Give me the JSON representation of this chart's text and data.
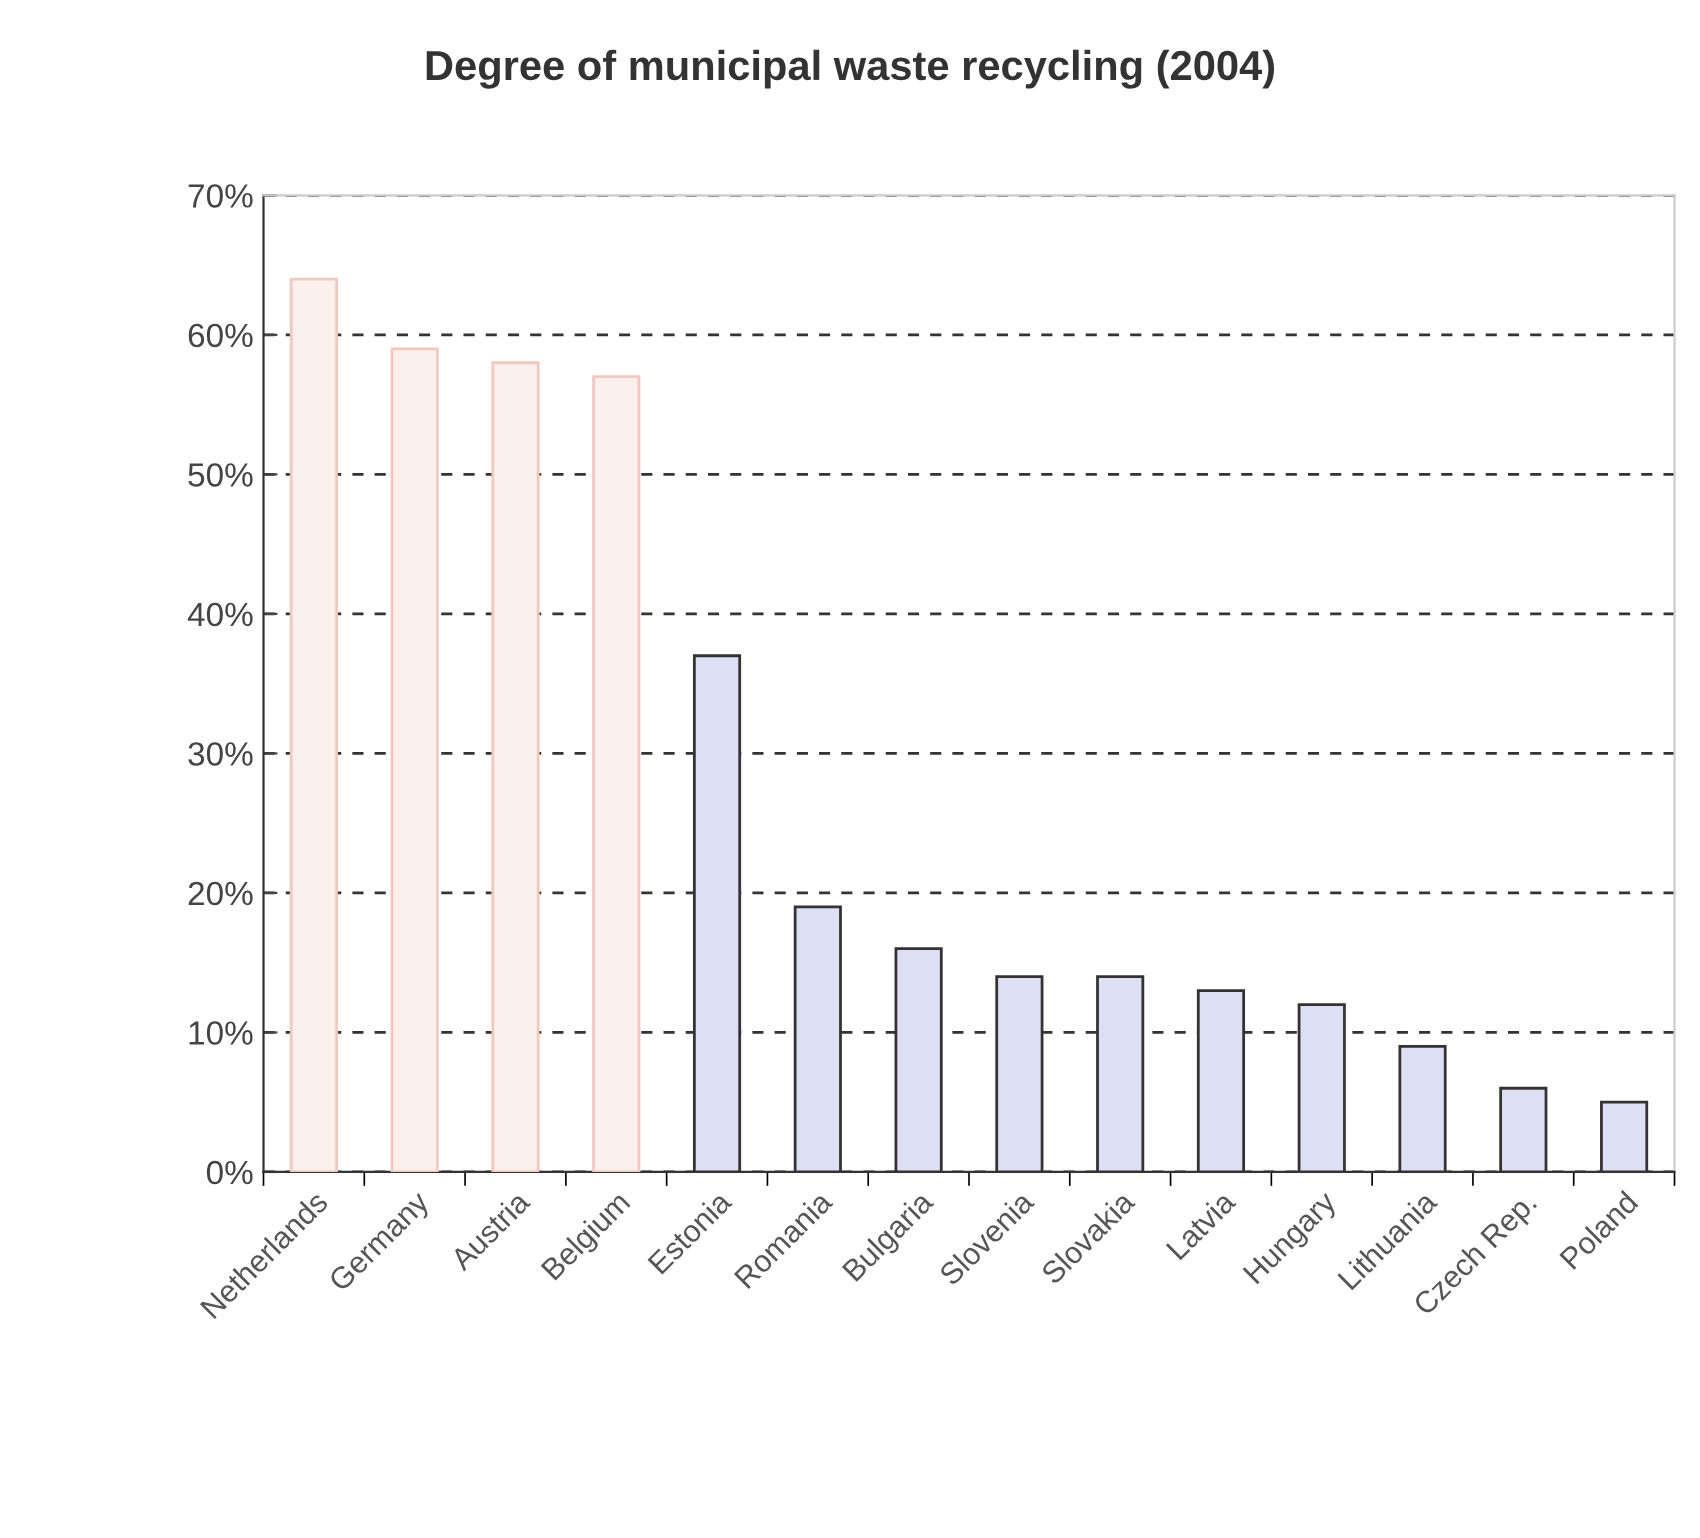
{
  "chart_data": {
    "type": "bar",
    "title": "Degree of municipal waste recycling (2004)",
    "categories": [
      "Netherlands",
      "Germany",
      "Austria",
      "Belgium",
      "Estonia",
      "Romania",
      "Bulgaria",
      "Slovenia",
      "Slovakia",
      "Latvia",
      "Hungary",
      "Lithuania",
      "Czech Rep.",
      "Poland"
    ],
    "values": [
      64,
      59,
      58,
      57,
      37,
      19,
      16,
      14,
      14,
      13,
      12,
      9,
      6,
      5
    ],
    "colors": [
      "#fbf0ec",
      "#fbf0ec",
      "#fbf0ec",
      "#fbf0ec",
      "#dde0f2",
      "#dde0f2",
      "#dde0f2",
      "#dde0f2",
      "#dde0f2",
      "#dde0f2",
      "#dde0f2",
      "#dde0f2",
      "#dde0f2",
      "#dde0f2"
    ],
    "ylim": [
      0,
      70
    ],
    "yticks": [
      {
        "value": 0,
        "label": "0%"
      },
      {
        "value": 10,
        "label": "10%"
      },
      {
        "value": 20,
        "label": "20%"
      },
      {
        "value": 30,
        "label": "30%"
      },
      {
        "value": 40,
        "label": "40%"
      },
      {
        "value": 50,
        "label": "50%"
      },
      {
        "value": 60,
        "label": "60%"
      },
      {
        "value": 70,
        "label": "70%"
      }
    ],
    "grid": "y",
    "line_style": "dashed"
  }
}
